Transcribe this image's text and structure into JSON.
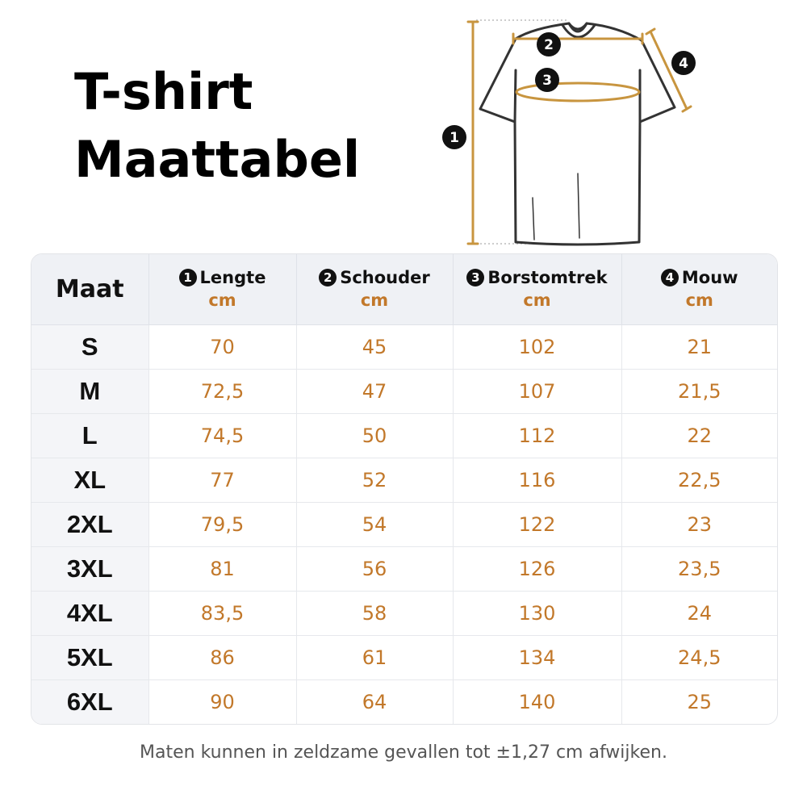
{
  "title": {
    "line1": "T-shirt",
    "line2": "Maattabel"
  },
  "diagram": {
    "markers": [
      "1",
      "2",
      "3",
      "4"
    ]
  },
  "table": {
    "size_header": "Maat",
    "columns": [
      {
        "num": "1",
        "name": "Lengte",
        "unit": "cm"
      },
      {
        "num": "2",
        "name": "Schouder",
        "unit": "cm"
      },
      {
        "num": "3",
        "name": "Borstomtrek",
        "unit": "cm"
      },
      {
        "num": "4",
        "name": "Mouw",
        "unit": "cm"
      }
    ],
    "rows": [
      {
        "size": "S",
        "values": [
          "70",
          "45",
          "102",
          "21"
        ]
      },
      {
        "size": "M",
        "values": [
          "72,5",
          "47",
          "107",
          "21,5"
        ]
      },
      {
        "size": "L",
        "values": [
          "74,5",
          "50",
          "112",
          "22"
        ]
      },
      {
        "size": "XL",
        "values": [
          "77",
          "52",
          "116",
          "22,5"
        ]
      },
      {
        "size": "2XL",
        "values": [
          "79,5",
          "54",
          "122",
          "23"
        ]
      },
      {
        "size": "3XL",
        "values": [
          "81",
          "56",
          "126",
          "23,5"
        ]
      },
      {
        "size": "4XL",
        "values": [
          "83,5",
          "58",
          "130",
          "24"
        ]
      },
      {
        "size": "5XL",
        "values": [
          "86",
          "61",
          "134",
          "24,5"
        ]
      },
      {
        "size": "6XL",
        "values": [
          "90",
          "64",
          "140",
          "25"
        ]
      }
    ]
  },
  "note": "Maten kunnen in zeldzame gevallen tot ±1,27 cm afwijken.",
  "colors": {
    "accent": "#c2782a",
    "header_bg": "#eff1f5",
    "measure_line": "#c8953f"
  }
}
